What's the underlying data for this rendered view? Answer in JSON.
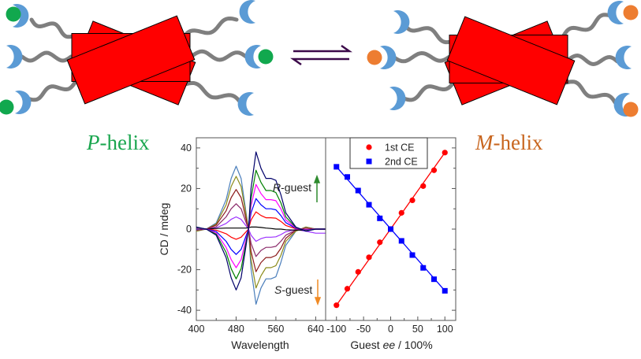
{
  "labels": {
    "p_helix_letter": "P",
    "p_helix_rest": "-helix",
    "m_helix_letter": "M",
    "m_helix_rest": "-helix",
    "r_guest_letter": "R",
    "r_guest_rest": "-guest",
    "s_guest_letter": "S",
    "s_guest_rest": "-guest"
  },
  "colors": {
    "p_helix": "#1aa64f",
    "m_helix": "#c8651e",
    "r_guest": "#2e8b2e",
    "s_guest": "#f08a24",
    "rod": "#ff0000",
    "host_crescent": "#5b9bd5",
    "p_guest": "#11a84e",
    "m_guest": "#ed7d31",
    "equilibrium_arrow": "#3c0a4a"
  },
  "chart_data": [
    {
      "type": "line",
      "xlabel": "Wavelength",
      "ylabel": "CD / mdeg",
      "xlim": [
        400,
        660
      ],
      "ylim": [
        -45,
        45
      ],
      "xticks": [
        400,
        480,
        560,
        640
      ],
      "yticks": [
        -40,
        -20,
        0,
        20,
        40
      ],
      "grid": false,
      "x": [
        400,
        420,
        440,
        460,
        470,
        480,
        490,
        500,
        505,
        510,
        520,
        530,
        540,
        550,
        560,
        570,
        580,
        600,
        620,
        640,
        660
      ],
      "series": [
        {
          "color": "#4a7ebb",
          "values": [
            -1,
            0,
            3,
            14.5,
            25,
            31,
            25,
            8,
            0,
            -19.5,
            -37,
            -29,
            -24.5,
            -24.5,
            -23.5,
            -16.5,
            -8,
            -1,
            1,
            0,
            0
          ]
        },
        {
          "color": "#8b8b1a",
          "values": [
            -1,
            0,
            2.5,
            12,
            21,
            26,
            21,
            7,
            0,
            -15,
            -29,
            -23,
            -19,
            -19,
            -18,
            -13,
            -6,
            -1,
            1,
            0,
            0
          ]
        },
        {
          "color": "#8b1a1a",
          "values": [
            -0.5,
            0,
            2,
            9,
            15.5,
            19.5,
            15.5,
            5,
            0,
            -11,
            -21,
            -16.5,
            -14,
            -14,
            -13,
            -9.5,
            -4.5,
            -0.5,
            0.5,
            0,
            0
          ]
        },
        {
          "color": "#8b2a6a",
          "values": [
            -0.5,
            0,
            1.2,
            6,
            10,
            12.5,
            10,
            3.3,
            0,
            -7,
            -13.5,
            -10.5,
            -9,
            -9,
            -8.5,
            -6,
            -3,
            -0.5,
            0.5,
            0,
            0
          ]
        },
        {
          "color": "#9b30ff",
          "values": [
            -0.2,
            0,
            0.6,
            2.8,
            4.8,
            6,
            4.8,
            1.6,
            0,
            -3,
            -6,
            -4.7,
            -4,
            -4,
            -3.8,
            -2.7,
            -1.3,
            -0.2,
            -1,
            -2,
            -2
          ]
        },
        {
          "color": "#000000",
          "values": [
            0,
            0,
            0.3,
            0.5,
            0.5,
            0.5,
            0.5,
            0.5,
            0.7,
            1,
            1,
            0.8,
            0.5,
            0.3,
            0,
            0,
            -0.3,
            -0.5,
            -0.5,
            0,
            0
          ]
        },
        {
          "color": "#ff0000",
          "values": [
            0.2,
            0,
            -0.5,
            -2.3,
            -4,
            -5,
            -4,
            -1.3,
            0,
            4.5,
            8.5,
            6.7,
            5.6,
            5.6,
            5.4,
            3.8,
            1.8,
            0.2,
            -0.2,
            0,
            0
          ]
        },
        {
          "color": "#0000ff",
          "values": [
            0.4,
            0,
            -1.2,
            -6,
            -10,
            -12.5,
            -10,
            -3.3,
            0,
            8,
            15,
            12,
            10,
            10,
            9.5,
            6.7,
            3.2,
            0.4,
            -0.4,
            0,
            0
          ]
        },
        {
          "color": "#ff00ff",
          "values": [
            0.6,
            0,
            -1.9,
            -9,
            -15,
            -19,
            -15,
            -5,
            0,
            11.5,
            22,
            17.5,
            14.5,
            14.5,
            14,
            10,
            4.5,
            0.6,
            -0.6,
            0,
            0
          ]
        },
        {
          "color": "#008000",
          "values": [
            0.8,
            0,
            -2.5,
            -11.5,
            -19.5,
            -24.5,
            -19.5,
            -6.5,
            0,
            15,
            29,
            23,
            19,
            19,
            18,
            13,
            6,
            0.8,
            -0.8,
            0,
            0
          ]
        },
        {
          "color": "#00006a",
          "values": [
            1,
            0,
            -3,
            -14,
            -24,
            -30,
            -24,
            -8,
            0,
            20,
            38,
            30,
            25,
            25,
            24,
            17,
            8,
            1,
            -1,
            0,
            0
          ]
        }
      ]
    },
    {
      "type": "scatter",
      "xlabel_prefix": "Guest ",
      "xlabel_italic": "ee",
      "xlabel_suffix": " / 100%",
      "xlim": [
        -120,
        120
      ],
      "ylim": [
        -45,
        45
      ],
      "xticks": [
        -100,
        -50,
        0,
        50,
        100
      ],
      "grid": false,
      "legend": "top",
      "x": [
        -100,
        -80,
        -60,
        -40,
        -20,
        0,
        20,
        40,
        60,
        80,
        100
      ],
      "series": [
        {
          "name": "1st CE",
          "color": "#ff0000",
          "marker": "circle",
          "values": [
            -37.5,
            -29.4,
            -21.1,
            -13.9,
            -6.5,
            0,
            8.0,
            14.2,
            21.2,
            29.0,
            37.7
          ]
        },
        {
          "name": "2nd CE",
          "color": "#0000ff",
          "marker": "square",
          "values": [
            30.7,
            25.7,
            19.0,
            12.0,
            5.3,
            0,
            -5.8,
            -12.8,
            -19.1,
            -24.7,
            -30.4
          ]
        }
      ]
    }
  ]
}
